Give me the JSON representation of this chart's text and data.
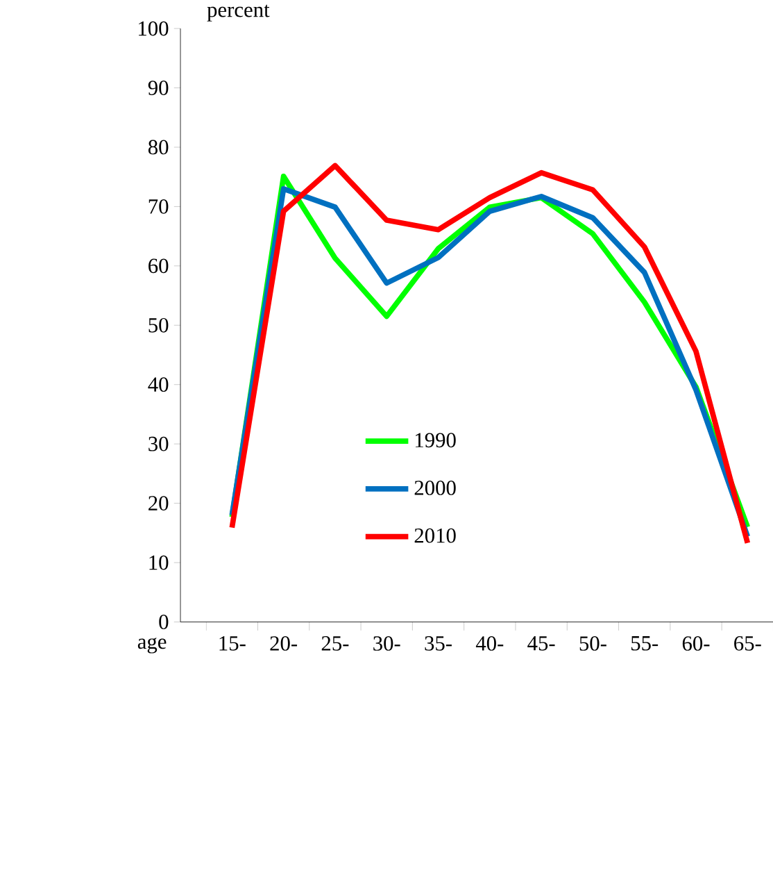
{
  "chart_data": {
    "type": "line",
    "ylabel": "percent",
    "xlabel": "age",
    "categories": [
      "15-",
      "20-",
      "25-",
      "30-",
      "35-",
      "40-",
      "45-",
      "50-",
      "55-",
      "60-",
      "65-"
    ],
    "series": [
      {
        "name": "1990",
        "color": "#00ff00",
        "values": [
          17.7,
          75.1,
          61.3,
          51.5,
          62.9,
          69.9,
          71.5,
          65.4,
          53.9,
          39.6,
          16
        ]
      },
      {
        "name": "2000",
        "color": "#0070c0",
        "values": [
          18,
          73,
          69.9,
          57.1,
          61.4,
          69.2,
          71.7,
          68.1,
          58.9,
          39.1,
          14.4
        ]
      },
      {
        "name": "2010",
        "color": "#ff0000",
        "values": [
          15.9,
          69.2,
          76.9,
          67.7,
          66.1,
          71.5,
          75.7,
          72.8,
          63.2,
          45.6,
          13.3
        ]
      }
    ],
    "ylim": [
      0,
      100
    ],
    "yticks": [
      0,
      10,
      20,
      30,
      40,
      50,
      60,
      70,
      80,
      90,
      100
    ],
    "legend": "bottom"
  }
}
